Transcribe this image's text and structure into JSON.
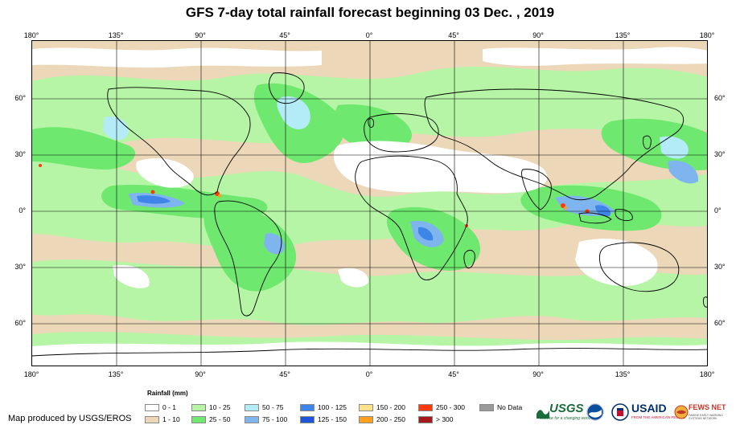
{
  "title": "GFS 7-day total rainfall forecast beginning 03 Dec. , 2019",
  "axes": {
    "longitude_labels": [
      "180°",
      "135°",
      "90°",
      "45°",
      "0°",
      "45°",
      "90°",
      "135°",
      "180°"
    ],
    "latitude_labels": [
      "60°",
      "30°",
      "0°",
      "30°",
      "60°"
    ]
  },
  "legend": {
    "title": "Rainfall (mm)",
    "items": [
      {
        "label": "0 - 1",
        "color": "#ffffff"
      },
      {
        "label": "1 - 10",
        "color": "#ecd7b8"
      },
      {
        "label": "10 - 25",
        "color": "#b6f5a6"
      },
      {
        "label": "25 - 50",
        "color": "#6fe86f"
      },
      {
        "label": "50 - 75",
        "color": "#b3ecf7"
      },
      {
        "label": "75 - 100",
        "color": "#7fb5ee"
      },
      {
        "label": "100 - 125",
        "color": "#3f85e8"
      },
      {
        "label": "125 - 150",
        "color": "#1f55d6"
      },
      {
        "label": "150 - 200",
        "color": "#ffe28a"
      },
      {
        "label": "200 - 250",
        "color": "#ff9f1a"
      },
      {
        "label": "250 - 300",
        "color": "#ff3a0a"
      },
      {
        "label": "> 300",
        "color": "#a5181c"
      },
      {
        "label": "No Data",
        "color": "#9a9a9a"
      }
    ]
  },
  "credit": "Map produced by USGS/EROS",
  "logos": {
    "usgs": "USGS",
    "usgs_tagline": "science for a changing world",
    "usaid": "USAID",
    "usaid_tagline": "FROM THE AMERICAN PEOPLE",
    "fews": "FEWS NET",
    "fews_tagline": "FAMINE EARLY WARNING SYSTEMS NETWORK"
  }
}
